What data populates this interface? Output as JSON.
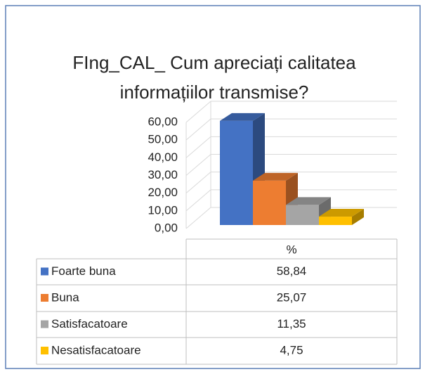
{
  "chart_data": {
    "type": "bar",
    "title": "FIng_CAL_ Cum apreciați calitatea informațiilor transmise?",
    "categories": [
      "%"
    ],
    "series": [
      {
        "name": "Foarte buna",
        "color": "#4472c4",
        "values": [
          58.84
        ],
        "value_labels": [
          "58,84"
        ]
      },
      {
        "name": "Buna",
        "color": "#ed7d31",
        "values": [
          25.07
        ],
        "value_labels": [
          "25,07"
        ]
      },
      {
        "name": "Satisfacatoare",
        "color": "#a5a5a5",
        "values": [
          11.35
        ],
        "value_labels": [
          "11,35"
        ]
      },
      {
        "name": "Nesatisfacatoare",
        "color": "#ffc000",
        "values": [
          4.75
        ],
        "value_labels": [
          "4,75"
        ]
      }
    ],
    "ylim": [
      0,
      60
    ],
    "yticks": [
      {
        "value": 0,
        "label": "0,00"
      },
      {
        "value": 10,
        "label": "10,00"
      },
      {
        "value": 20,
        "label": "20,00"
      },
      {
        "value": 30,
        "label": "30,00"
      },
      {
        "value": 40,
        "label": "40,00"
      },
      {
        "value": 50,
        "label": "50,00"
      },
      {
        "value": 60,
        "label": "60,00"
      }
    ],
    "grid": true,
    "legend": "table"
  }
}
